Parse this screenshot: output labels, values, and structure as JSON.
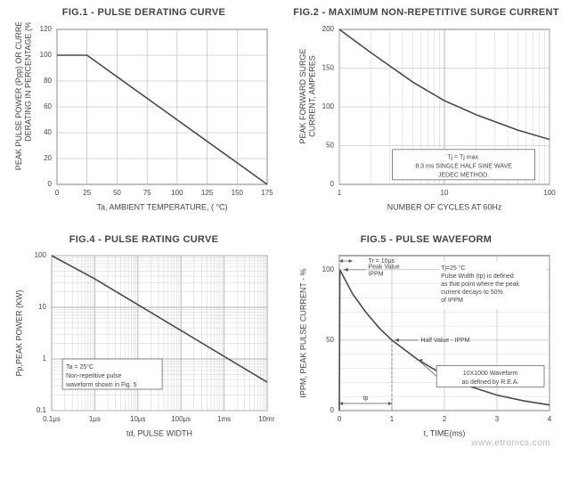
{
  "watermark": "www.etronics.com",
  "colors": {
    "bg": "#ffffff",
    "text": "#444444",
    "axis": "#555555",
    "grid_major": "#b0b0b0",
    "grid_minor": "#d0d0d0",
    "curve": "#4a4a4a"
  },
  "fonts": {
    "title_size": 11,
    "axis_label_size": 9,
    "tick_size": 8,
    "note_size": 7
  },
  "fig1": {
    "title": "FIG.1 - PULSE DERATING CURVE",
    "type": "line",
    "x_label": "Ta, AMBIENT TEMPERATURE, ( °C)",
    "y_label": "PEAK PULSE POWER (Ppp) OR CURRENT (IPP)\nDERATING IN PERCENTAGE (%)",
    "xlim": [
      0,
      175
    ],
    "ylim": [
      0,
      120
    ],
    "xticks": [
      0,
      25,
      50,
      75,
      100,
      125,
      150,
      175
    ],
    "yticks": [
      0,
      20,
      40,
      60,
      80,
      100,
      120
    ],
    "curve": [
      {
        "x": 0,
        "y": 100
      },
      {
        "x": 25,
        "y": 100
      },
      {
        "x": 175,
        "y": 0
      }
    ],
    "plot_bg": "#ffffff",
    "curve_width": 1.6
  },
  "fig2": {
    "title": "FIG.2 - MAXIMUM NON-REPETITIVE\nSURGE CURRENT",
    "type": "line-logx",
    "x_label": "NUMBER OF CYCLES AT 60Hz",
    "y_label": "PEAK FORWARD SURGE\nCURRENT, AMPERES",
    "xlim_log": [
      1,
      100
    ],
    "ylim": [
      0,
      200
    ],
    "yticks": [
      0,
      50,
      100,
      150,
      200
    ],
    "x_decades": [
      1,
      10,
      100
    ],
    "curve_log": [
      {
        "x": 1,
        "y": 200
      },
      {
        "x": 2,
        "y": 170
      },
      {
        "x": 5,
        "y": 132
      },
      {
        "x": 10,
        "y": 108
      },
      {
        "x": 20,
        "y": 90
      },
      {
        "x": 50,
        "y": 70
      },
      {
        "x": 100,
        "y": 58
      }
    ],
    "note_lines": [
      "Tj = Tj max.",
      "8.3 ms SINGLE HALF SINE WAVE",
      "JEDEC METHOD."
    ],
    "plot_bg": "#ffffff",
    "curve_width": 1.6
  },
  "fig4": {
    "title": "FIG.4 - PULSE RATING CURVE",
    "type": "line-loglog",
    "x_label": "td, PULSE WIDTH",
    "y_label": "Pp,PEAK POWER (KW)",
    "x_decades": [
      "0.1μs",
      "1μs",
      "10μs",
      "100μs",
      "1ms",
      "10ms"
    ],
    "y_decades": [
      "0.1",
      "1",
      "10",
      "100"
    ],
    "curve_loglog": [
      {
        "xi": 0.0,
        "yi": 3.0
      },
      {
        "xi": 1.0,
        "yi": 2.55
      },
      {
        "xi": 2.0,
        "yi": 2.05
      },
      {
        "xi": 3.0,
        "yi": 1.55
      },
      {
        "xi": 4.0,
        "yi": 1.05
      },
      {
        "xi": 5.0,
        "yi": 0.55
      }
    ],
    "note_lines": [
      "Ta = 25°C",
      "Non-repetitive pulse",
      "waveform shown in Fig. 5"
    ],
    "plot_bg": "#ffffff",
    "curve_width": 1.6
  },
  "fig5": {
    "title": "FIG.5 - PULSE WAVEFORM",
    "type": "line",
    "x_label": "t, TIME(ms)",
    "y_label": "IPPM, PEAK PULSE CURRENT - %",
    "xlim": [
      0,
      4.0
    ],
    "ylim": [
      0,
      110
    ],
    "xticks": [
      0,
      1.0,
      2.0,
      3.0,
      4.0
    ],
    "yticks": [
      0,
      50,
      100
    ],
    "curve": [
      {
        "x": 0.0,
        "y": 0
      },
      {
        "x": 0.01,
        "y": 100
      },
      {
        "x": 0.25,
        "y": 83
      },
      {
        "x": 0.5,
        "y": 70
      },
      {
        "x": 0.75,
        "y": 59
      },
      {
        "x": 1.0,
        "y": 50
      },
      {
        "x": 1.5,
        "y": 36
      },
      {
        "x": 2.0,
        "y": 25
      },
      {
        "x": 2.5,
        "y": 17
      },
      {
        "x": 3.0,
        "y": 11
      },
      {
        "x": 3.5,
        "y": 7
      },
      {
        "x": 4.0,
        "y": 4
      }
    ],
    "annotations": {
      "tr_label": "Tr = 10μs",
      "peak_label": "Peak Value\nIPPM",
      "half_label": "Half Value - IPPM",
      "tp_label": "tp",
      "box_lines": [
        "Tj=25 °C",
        "Pulse Width (tp) is defined",
        "as that point where the peak",
        "current decays to 50%",
        "of IPPM"
      ],
      "wave_box_lines": [
        "10X1000 Waveform",
        "as defined by R.E.A."
      ]
    },
    "plot_bg": "#ffffff",
    "curve_width": 1.6
  }
}
